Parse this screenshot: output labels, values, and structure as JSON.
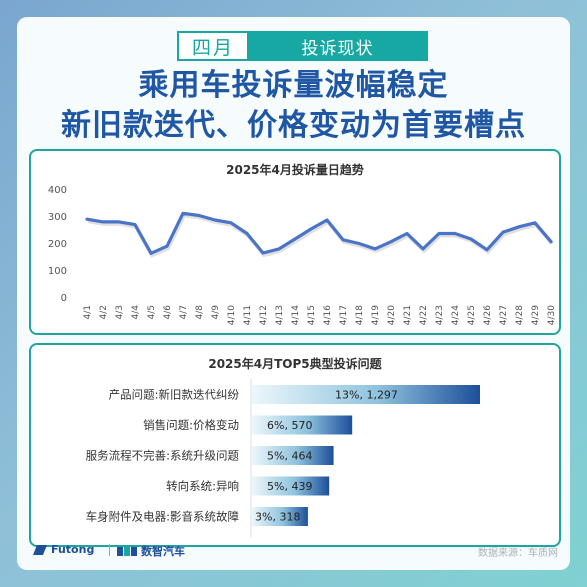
{
  "tag": {
    "month": "四月",
    "topic": "投诉现状"
  },
  "headline": {
    "line1": "乘用车投诉量波幅稳定",
    "line2": "新旧款迭代、价格变动为首要槽点"
  },
  "colors": {
    "line": "#4a74c8",
    "accent": "#17a8a4",
    "bar_dark": "#1d4f9a",
    "bar_light": "#ecf7fb",
    "headline": "#1f57a4"
  },
  "chart_data": [
    {
      "type": "line",
      "title": "2025年4月投诉量日趋势",
      "x": [
        "4/1",
        "4/2",
        "4/3",
        "4/4",
        "4/5",
        "4/6",
        "4/7",
        "4/8",
        "4/9",
        "4/10",
        "4/11",
        "4/12",
        "4/13",
        "4/14",
        "4/15",
        "4/16",
        "4/17",
        "4/18",
        "4/19",
        "4/20",
        "4/21",
        "4/22",
        "4/23",
        "4/24",
        "4/25",
        "4/26",
        "4/27",
        "4/28",
        "4/29",
        "4/30"
      ],
      "series": [
        {
          "values": [
            288,
            278,
            278,
            268,
            162,
            188,
            310,
            302,
            285,
            275,
            235,
            163,
            178,
            215,
            252,
            285,
            212,
            198,
            178,
            205,
            235,
            178,
            235,
            235,
            215,
            175,
            240,
            260,
            275,
            205
          ]
        }
      ],
      "ylim": [
        0,
        400
      ],
      "yticks": [
        "0",
        "100",
        "200",
        "300",
        "400"
      ],
      "grid": false,
      "legend": false
    },
    {
      "type": "bar",
      "orientation": "horizontal",
      "title": "2025年4月TOP5典型投诉问题",
      "categories": [
        "产品问题:新旧款迭代纠纷",
        "销售问题:价格变动",
        "服务流程不完善:系统升级问题",
        "转向系统:异响",
        "车身附件及电器:影音系统故障"
      ],
      "values": [
        1297,
        570,
        464,
        439,
        318
      ],
      "labels": [
        "13%, 1,297",
        "6%, 570",
        "5%, 464",
        "5%, 439",
        "3%, 318"
      ]
    }
  ],
  "footer": {
    "brand1": "Futong",
    "brand2": "数智汽车",
    "source": "数据来源：车质网"
  }
}
